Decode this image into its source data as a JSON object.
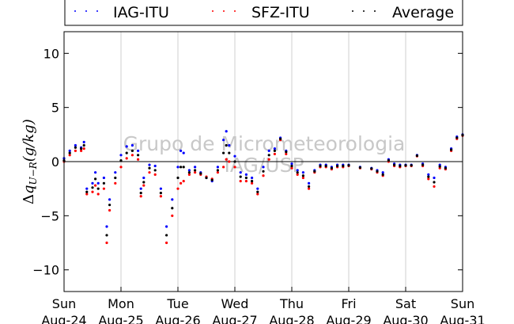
{
  "chart_data": {
    "type": "scatter",
    "ylabel": "Δq_{U−R}(g/kg)",
    "ylabel_parts": {
      "delta": "Δ",
      "q": "q",
      "sub": "U−R",
      "unit": "(g/kg)"
    },
    "ylim": [
      -12,
      12
    ],
    "yticks": [
      "10",
      "5",
      "0",
      "−5",
      "−10"
    ],
    "ytick_values": [
      10,
      5,
      0,
      -5,
      -10
    ],
    "xlim": [
      0,
      7
    ],
    "xticks": [
      {
        "value": 0,
        "day": "Sun",
        "date": "Aug-24"
      },
      {
        "value": 1,
        "day": "Mon",
        "date": "Aug-25"
      },
      {
        "value": 2,
        "day": "Tue",
        "date": "Aug-26"
      },
      {
        "value": 3,
        "day": "Wed",
        "date": "Aug-27"
      },
      {
        "value": 4,
        "day": "Thu",
        "date": "Aug-28"
      },
      {
        "value": 5,
        "day": "Fri",
        "date": "Aug-29"
      },
      {
        "value": 6,
        "day": "Sat",
        "date": "Aug-30"
      },
      {
        "value": 7,
        "day": "Sun",
        "date": "Aug-31"
      }
    ],
    "grid": "vertical",
    "zero_line": true,
    "legend_position": "top",
    "watermark": [
      "Grupo de Micrometeorologia",
      "IAG/USP"
    ],
    "series": [
      {
        "name": "IAG-ITU",
        "color": "#0000ff",
        "x": [
          0.0,
          0.1,
          0.2,
          0.3,
          0.35,
          0.4,
          0.5,
          0.55,
          0.6,
          0.7,
          0.75,
          0.8,
          0.9,
          1.0,
          1.1,
          1.2,
          1.3,
          1.35,
          1.4,
          1.5,
          1.6,
          1.7,
          1.8,
          1.9,
          2.0,
          2.05,
          2.1,
          2.2,
          2.3,
          2.4,
          2.5,
          2.6,
          2.7,
          2.8,
          2.85,
          2.9,
          3.0,
          3.1,
          3.2,
          3.3,
          3.4,
          3.5,
          3.6,
          3.7,
          3.8,
          3.9,
          4.0,
          4.1,
          4.2,
          4.3,
          4.4,
          4.5,
          4.6,
          4.7,
          4.8,
          4.9,
          5.0,
          5.2,
          5.4,
          5.5,
          5.6,
          5.7,
          5.8,
          5.9,
          6.0,
          6.1,
          6.2,
          6.3,
          6.4,
          6.5,
          6.6,
          6.7,
          6.8,
          6.9,
          7.0
        ],
        "y": [
          0.3,
          1.0,
          1.5,
          1.3,
          1.8,
          -2.5,
          -2.0,
          -1.0,
          -2.0,
          -1.5,
          -6.0,
          -3.5,
          -1.0,
          0.6,
          1.4,
          1.5,
          1.0,
          -2.5,
          -1.5,
          -0.3,
          -0.4,
          -2.5,
          -6.0,
          -3.5,
          -0.5,
          1.0,
          0.8,
          -0.8,
          -0.5,
          -1.0,
          -1.5,
          -1.8,
          -0.5,
          2.0,
          2.8,
          1.5,
          0.5,
          -1.0,
          -1.2,
          -1.5,
          -2.5,
          -0.5,
          1.0,
          1.2,
          2.2,
          1.0,
          -0.2,
          -0.8,
          -1.0,
          -2.0,
          -0.8,
          -0.3,
          -0.3,
          -0.5,
          -0.3,
          -0.3,
          -0.3,
          -0.5,
          -0.6,
          -0.8,
          -1.0,
          0.2,
          -0.2,
          -0.3,
          -0.3,
          -0.3,
          0.6,
          -0.2,
          -1.2,
          -1.5,
          -0.3,
          -0.5,
          1.2,
          2.3,
          2.5
        ]
      },
      {
        "name": "SFZ-ITU",
        "color": "#ff0000",
        "x": [
          0.0,
          0.1,
          0.2,
          0.3,
          0.35,
          0.4,
          0.5,
          0.55,
          0.6,
          0.7,
          0.75,
          0.8,
          0.9,
          1.0,
          1.1,
          1.2,
          1.3,
          1.35,
          1.4,
          1.5,
          1.6,
          1.7,
          1.8,
          1.9,
          2.0,
          2.05,
          2.1,
          2.2,
          2.3,
          2.4,
          2.5,
          2.6,
          2.7,
          2.8,
          2.85,
          2.9,
          3.0,
          3.1,
          3.2,
          3.3,
          3.4,
          3.5,
          3.6,
          3.7,
          3.8,
          3.9,
          4.0,
          4.1,
          4.2,
          4.3,
          4.4,
          4.5,
          4.6,
          4.7,
          4.8,
          4.9,
          5.0,
          5.2,
          5.4,
          5.5,
          5.6,
          5.7,
          5.8,
          5.9,
          6.0,
          6.1,
          6.2,
          6.3,
          6.4,
          6.5,
          6.6,
          6.7,
          6.8,
          6.9,
          7.0
        ],
        "y": [
          0.0,
          0.6,
          1.0,
          1.0,
          1.2,
          -3.0,
          -2.8,
          -2.2,
          -3.0,
          -2.5,
          -7.5,
          -4.5,
          -2.0,
          -0.5,
          0.3,
          0.6,
          0.2,
          -3.2,
          -2.2,
          -1.0,
          -1.2,
          -3.2,
          -7.5,
          -5.0,
          -2.5,
          -2.0,
          -1.8,
          -1.2,
          -1.0,
          -1.2,
          -1.4,
          -1.6,
          -1.0,
          -0.5,
          0.2,
          0.0,
          -0.5,
          -1.8,
          -1.8,
          -2.0,
          -3.0,
          -1.3,
          0.2,
          0.7,
          2.0,
          0.7,
          -0.6,
          -1.2,
          -1.5,
          -2.5,
          -1.0,
          -0.5,
          -0.5,
          -0.7,
          -0.5,
          -0.5,
          -0.4,
          -0.6,
          -0.7,
          -1.0,
          -1.3,
          0.0,
          -0.4,
          -0.5,
          -0.4,
          -0.4,
          0.5,
          -0.4,
          -1.6,
          -2.3,
          -0.6,
          -0.7,
          1.0,
          2.1,
          2.4
        ]
      },
      {
        "name": "Average",
        "color": "#000000",
        "x": [
          0.0,
          0.1,
          0.2,
          0.3,
          0.35,
          0.4,
          0.5,
          0.55,
          0.6,
          0.7,
          0.75,
          0.8,
          0.9,
          1.0,
          1.1,
          1.2,
          1.3,
          1.35,
          1.4,
          1.5,
          1.6,
          1.7,
          1.8,
          1.9,
          2.0,
          2.05,
          2.1,
          2.2,
          2.3,
          2.4,
          2.5,
          2.6,
          2.7,
          2.8,
          2.85,
          2.9,
          3.0,
          3.1,
          3.2,
          3.3,
          3.4,
          3.5,
          3.6,
          3.7,
          3.8,
          3.9,
          4.0,
          4.1,
          4.2,
          4.3,
          4.4,
          4.5,
          4.6,
          4.7,
          4.8,
          4.9,
          5.0,
          5.2,
          5.4,
          5.5,
          5.6,
          5.7,
          5.8,
          5.9,
          6.0,
          6.1,
          6.2,
          6.3,
          6.4,
          6.5,
          6.6,
          6.7,
          6.8,
          6.9,
          7.0
        ],
        "y": [
          0.1,
          0.8,
          1.3,
          1.2,
          1.5,
          -2.8,
          -2.4,
          -1.6,
          -2.5,
          -2.0,
          -6.8,
          -4.0,
          -1.5,
          0.1,
          0.8,
          1.0,
          0.6,
          -2.9,
          -1.9,
          -0.6,
          -0.8,
          -2.9,
          -6.8,
          -4.3,
          -1.5,
          -0.5,
          -0.5,
          -1.0,
          -0.8,
          -1.1,
          -1.5,
          -1.7,
          -0.8,
          0.8,
          1.5,
          0.8,
          0.0,
          -1.4,
          -1.5,
          -1.8,
          -2.8,
          -0.9,
          0.6,
          1.0,
          2.1,
          0.9,
          -0.4,
          -1.0,
          -1.3,
          -2.3,
          -0.9,
          -0.4,
          -0.4,
          -0.6,
          -0.4,
          -0.4,
          -0.35,
          -0.55,
          -0.65,
          -0.9,
          -1.2,
          0.1,
          -0.3,
          -0.4,
          -0.35,
          -0.35,
          0.55,
          -0.3,
          -1.4,
          -1.9,
          -0.45,
          -0.6,
          1.1,
          2.2,
          2.45
        ]
      }
    ]
  }
}
